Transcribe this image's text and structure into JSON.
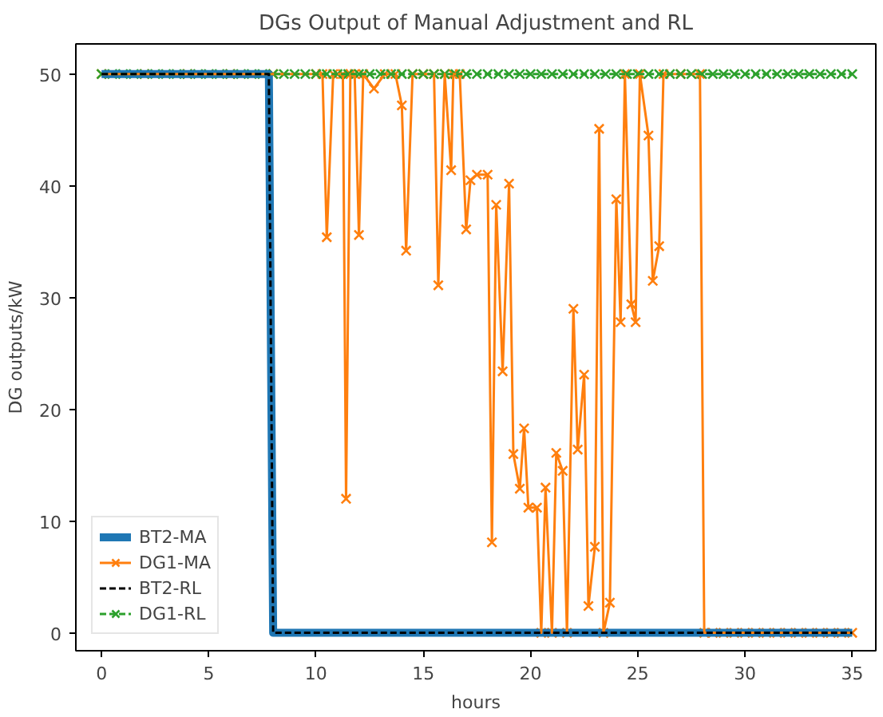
{
  "chart_data": {
    "type": "line",
    "title": "DGs Output of Manual Adjustment and RL",
    "xlabel": "hours",
    "ylabel": "DG outputs/kW",
    "xlim": [
      -1.2,
      36.1
    ],
    "ylim": [
      -1.6,
      52.7
    ],
    "xticks": [
      0,
      5,
      10,
      15,
      20,
      25,
      30,
      35
    ],
    "yticks": [
      0,
      10,
      20,
      30,
      40,
      50
    ],
    "grid": false,
    "legend": "bottom left",
    "series": [
      {
        "name": "BT2-MA",
        "color": "#1f77b4",
        "line_style": "solid",
        "marker": "none",
        "x": [
          0,
          7.8,
          8.0,
          35
        ],
        "values": [
          50,
          50,
          0,
          0
        ]
      },
      {
        "name": "DG1-MA",
        "color": "#ff7f0e",
        "line_style": "solid",
        "marker": "cross",
        "x": [
          0,
          2,
          4,
          6,
          8,
          10,
          10.3,
          10.5,
          10.8,
          11.25,
          11.4,
          11.6,
          11.8,
          12.0,
          12.2,
          12.7,
          13.2,
          13.7,
          14.0,
          14.2,
          14.5,
          15.0,
          15.5,
          15.7,
          16.0,
          16.3,
          16.4,
          16.7,
          17.0,
          17.2,
          17.5,
          18.0,
          18.2,
          18.4,
          18.7,
          19.0,
          19.2,
          19.5,
          19.7,
          19.9,
          20.3,
          20.5,
          20.7,
          21.0,
          21.2,
          21.5,
          21.7,
          22.0,
          22.2,
          22.5,
          22.7,
          23.0,
          23.2,
          23.4,
          23.7,
          24.0,
          24.2,
          24.4,
          24.7,
          24.9,
          25.1,
          25.5,
          25.7,
          26.0,
          26.2,
          27.0,
          27.9,
          28.1,
          28.5,
          29,
          29.5,
          30,
          30.5,
          31,
          31.5,
          32,
          32.5,
          33,
          33.5,
          34,
          34.5,
          35
        ],
        "values": [
          50,
          50,
          50,
          50,
          50,
          50,
          50,
          35.4,
          50,
          50,
          12.0,
          50,
          50,
          35.6,
          50,
          48.7,
          50,
          50,
          47.2,
          34.2,
          50,
          50,
          50,
          31.1,
          50,
          41.4,
          50,
          50,
          36.1,
          40.5,
          41.0,
          41.0,
          8.1,
          38.3,
          23.4,
          40.2,
          16.0,
          12.9,
          18.3,
          11.2,
          11.2,
          0,
          13.0,
          0,
          16.1,
          14.5,
          0,
          29.0,
          16.4,
          23.1,
          2.4,
          7.7,
          45.1,
          0,
          2.7,
          38.8,
          27.8,
          50,
          29.4,
          27.8,
          50,
          44.5,
          31.5,
          34.6,
          50,
          50,
          50,
          0,
          0,
          0,
          0,
          0,
          0,
          0,
          0,
          0,
          0,
          0,
          0,
          0,
          0,
          0
        ]
      },
      {
        "name": "BT2-RL",
        "color": "#000000",
        "line_style": "dashed",
        "marker": "none",
        "x": [
          0,
          7.8,
          8.0,
          35
        ],
        "values": [
          50,
          50,
          0,
          0
        ]
      },
      {
        "name": "DG1-RL",
        "color": "#2ca02c",
        "line_style": "dashed",
        "marker": "cross",
        "x": [
          0,
          0.5,
          1,
          1.5,
          2,
          2.5,
          3,
          3.5,
          4,
          4.5,
          5,
          5.5,
          6,
          6.5,
          7,
          7.5,
          8,
          8.5,
          9,
          9.5,
          10,
          10.5,
          11,
          11.5,
          12,
          12.5,
          13,
          13.5,
          14,
          14.5,
          15,
          15.5,
          16,
          16.5,
          17,
          17.5,
          18,
          18.5,
          19,
          19.5,
          20,
          20.5,
          21,
          21.5,
          22,
          22.5,
          23,
          23.5,
          24,
          24.5,
          25,
          25.5,
          26,
          26.5,
          27,
          27.5,
          28,
          28.5,
          29,
          29.5,
          30,
          30.5,
          31,
          31.5,
          32,
          32.5,
          33,
          33.5,
          34,
          34.5,
          35
        ],
        "values": [
          50,
          50,
          50,
          50,
          50,
          50,
          50,
          50,
          50,
          50,
          50,
          50,
          50,
          50,
          50,
          50,
          50,
          50,
          50,
          50,
          50,
          50,
          50,
          50,
          50,
          50,
          50,
          50,
          50,
          50,
          50,
          50,
          50,
          50,
          50,
          50,
          50,
          50,
          50,
          50,
          50,
          50,
          50,
          50,
          50,
          50,
          50,
          50,
          50,
          50,
          50,
          50,
          50,
          50,
          50,
          50,
          50,
          50,
          50,
          50,
          50,
          50,
          50,
          50,
          50,
          50,
          50,
          50,
          50,
          50,
          50
        ]
      }
    ]
  }
}
